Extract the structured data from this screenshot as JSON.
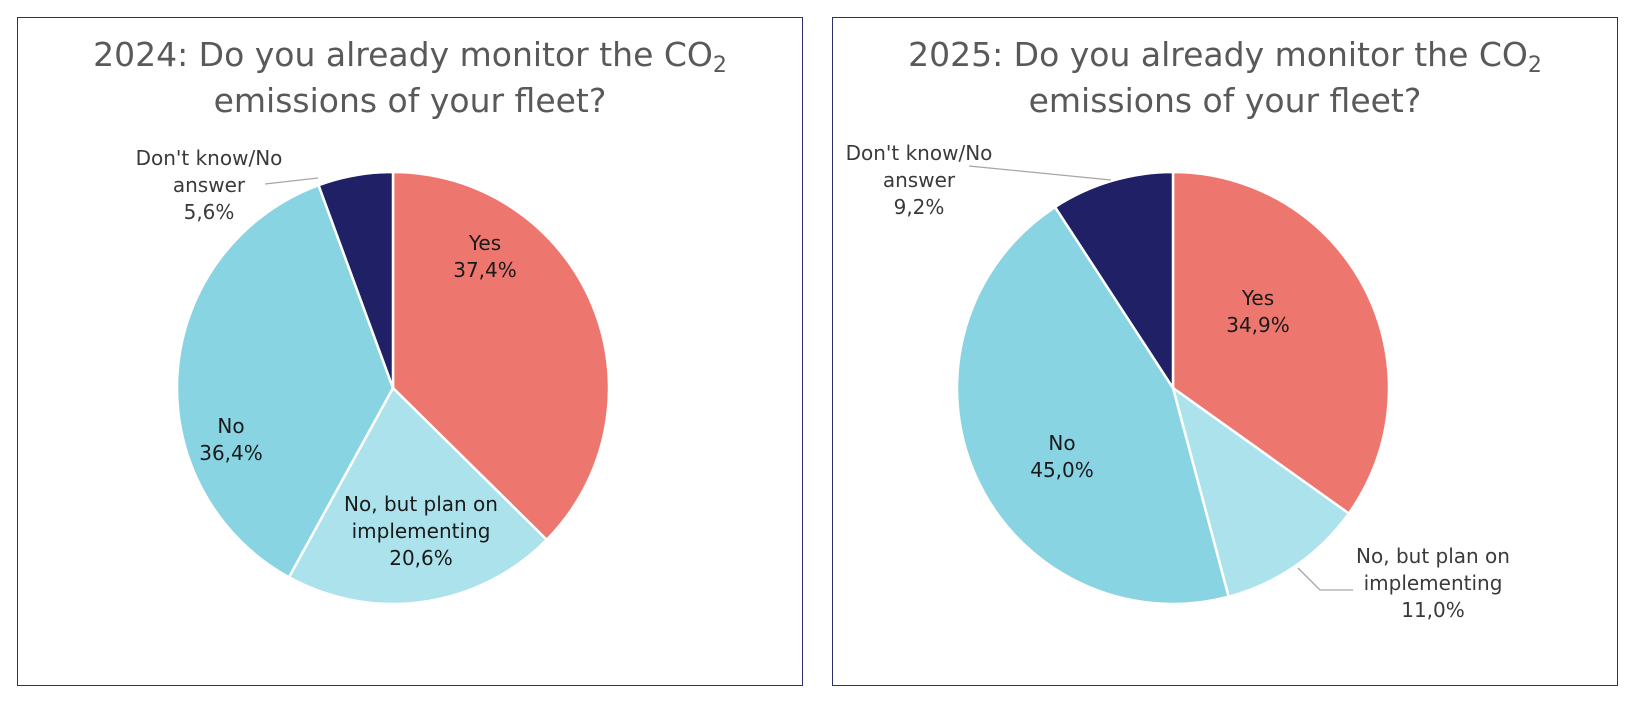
{
  "charts": [
    {
      "title_main": "2024: Do you already monitor the CO",
      "title_sub": "2",
      "title_line2": "emissions of your fleet?"
    },
    {
      "title_main": "2025: Do you already monitor the CO",
      "title_sub": "2",
      "title_line2": "emissions of your fleet?"
    }
  ],
  "chart_data": [
    {
      "type": "pie",
      "title": "2024: Do you already monitor the CO2 emissions of your fleet?",
      "start_angle": "12 o'clock, clockwise",
      "slices": [
        {
          "label_lines": [
            "Yes"
          ],
          "value": 37.4,
          "value_text": "37,4%",
          "color": "#ed766f"
        },
        {
          "label_lines": [
            "No, but plan on",
            "implementing"
          ],
          "value": 20.6,
          "value_text": "20,6%",
          "color": "#ace2ec"
        },
        {
          "label_lines": [
            "No"
          ],
          "value": 36.4,
          "value_text": "36,4%",
          "color": "#88d4e3"
        },
        {
          "label_lines": [
            "Don't know/No",
            "answer"
          ],
          "value": 5.6,
          "value_text": "5,6%",
          "color": "#1f2065"
        }
      ]
    },
    {
      "type": "pie",
      "title": "2025: Do you already monitor the CO2 emissions of your fleet?",
      "start_angle": "12 o'clock, clockwise",
      "slices": [
        {
          "label_lines": [
            "Yes"
          ],
          "value": 34.9,
          "value_text": "34,9%",
          "color": "#ed766f"
        },
        {
          "label_lines": [
            "No, but plan on",
            "implementing"
          ],
          "value": 11.0,
          "value_text": "11,0%",
          "color": "#ace2ec"
        },
        {
          "label_lines": [
            "No"
          ],
          "value": 45.0,
          "value_text": "45,0%",
          "color": "#88d4e3"
        },
        {
          "label_lines": [
            "Don't know/No",
            "answer"
          ],
          "value": 9.2,
          "value_text": "9,2%",
          "color": "#1f2065"
        }
      ]
    }
  ]
}
